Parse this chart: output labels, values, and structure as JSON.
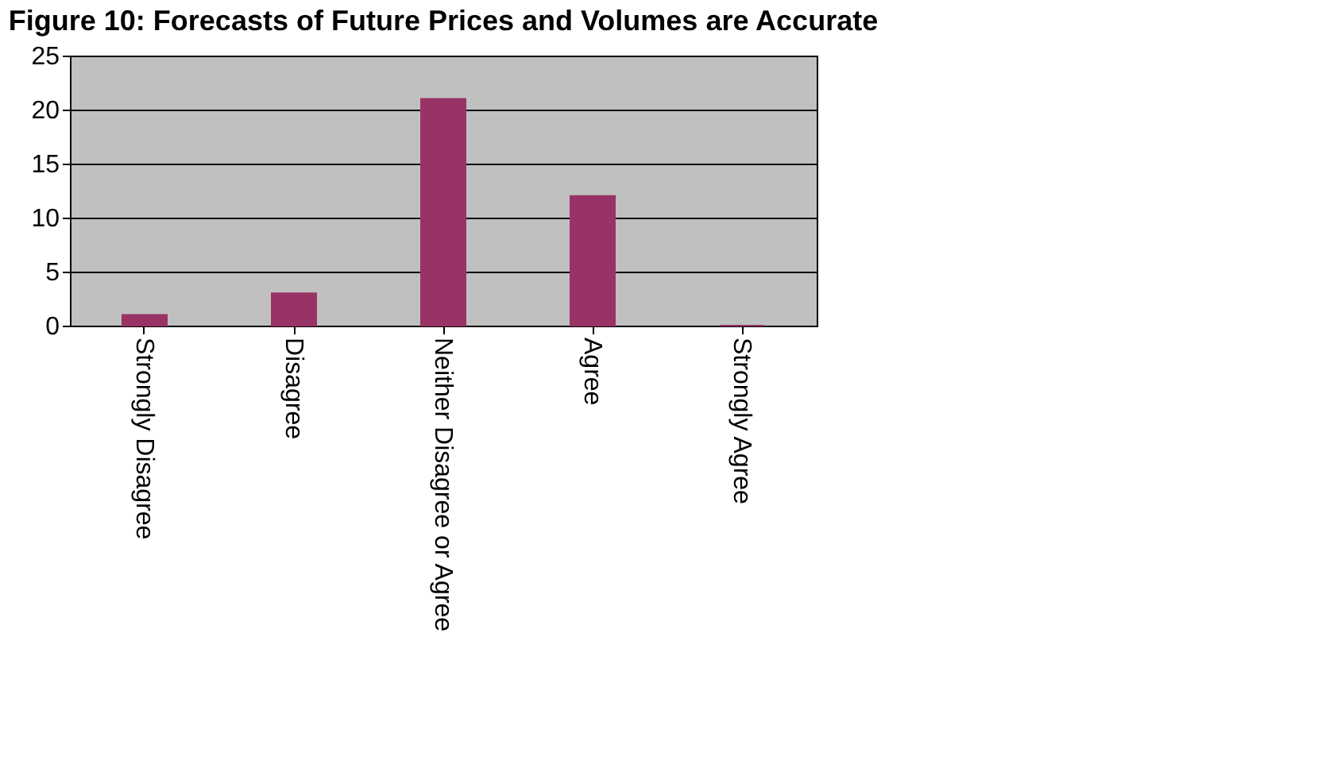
{
  "chart_data": {
    "type": "bar",
    "title": "Figure 10: Forecasts of Future Prices and Volumes are Accurate",
    "categories": [
      "Strongly Disagree",
      "Disagree",
      "Neither Disagree or Agree",
      "Agree",
      "Strongly Agree"
    ],
    "values": [
      1,
      3,
      21,
      12,
      0
    ],
    "color": "#993366",
    "ylim": [
      0,
      25
    ],
    "yticks": [
      0,
      5,
      10,
      15,
      20,
      25
    ],
    "grid": "y"
  }
}
